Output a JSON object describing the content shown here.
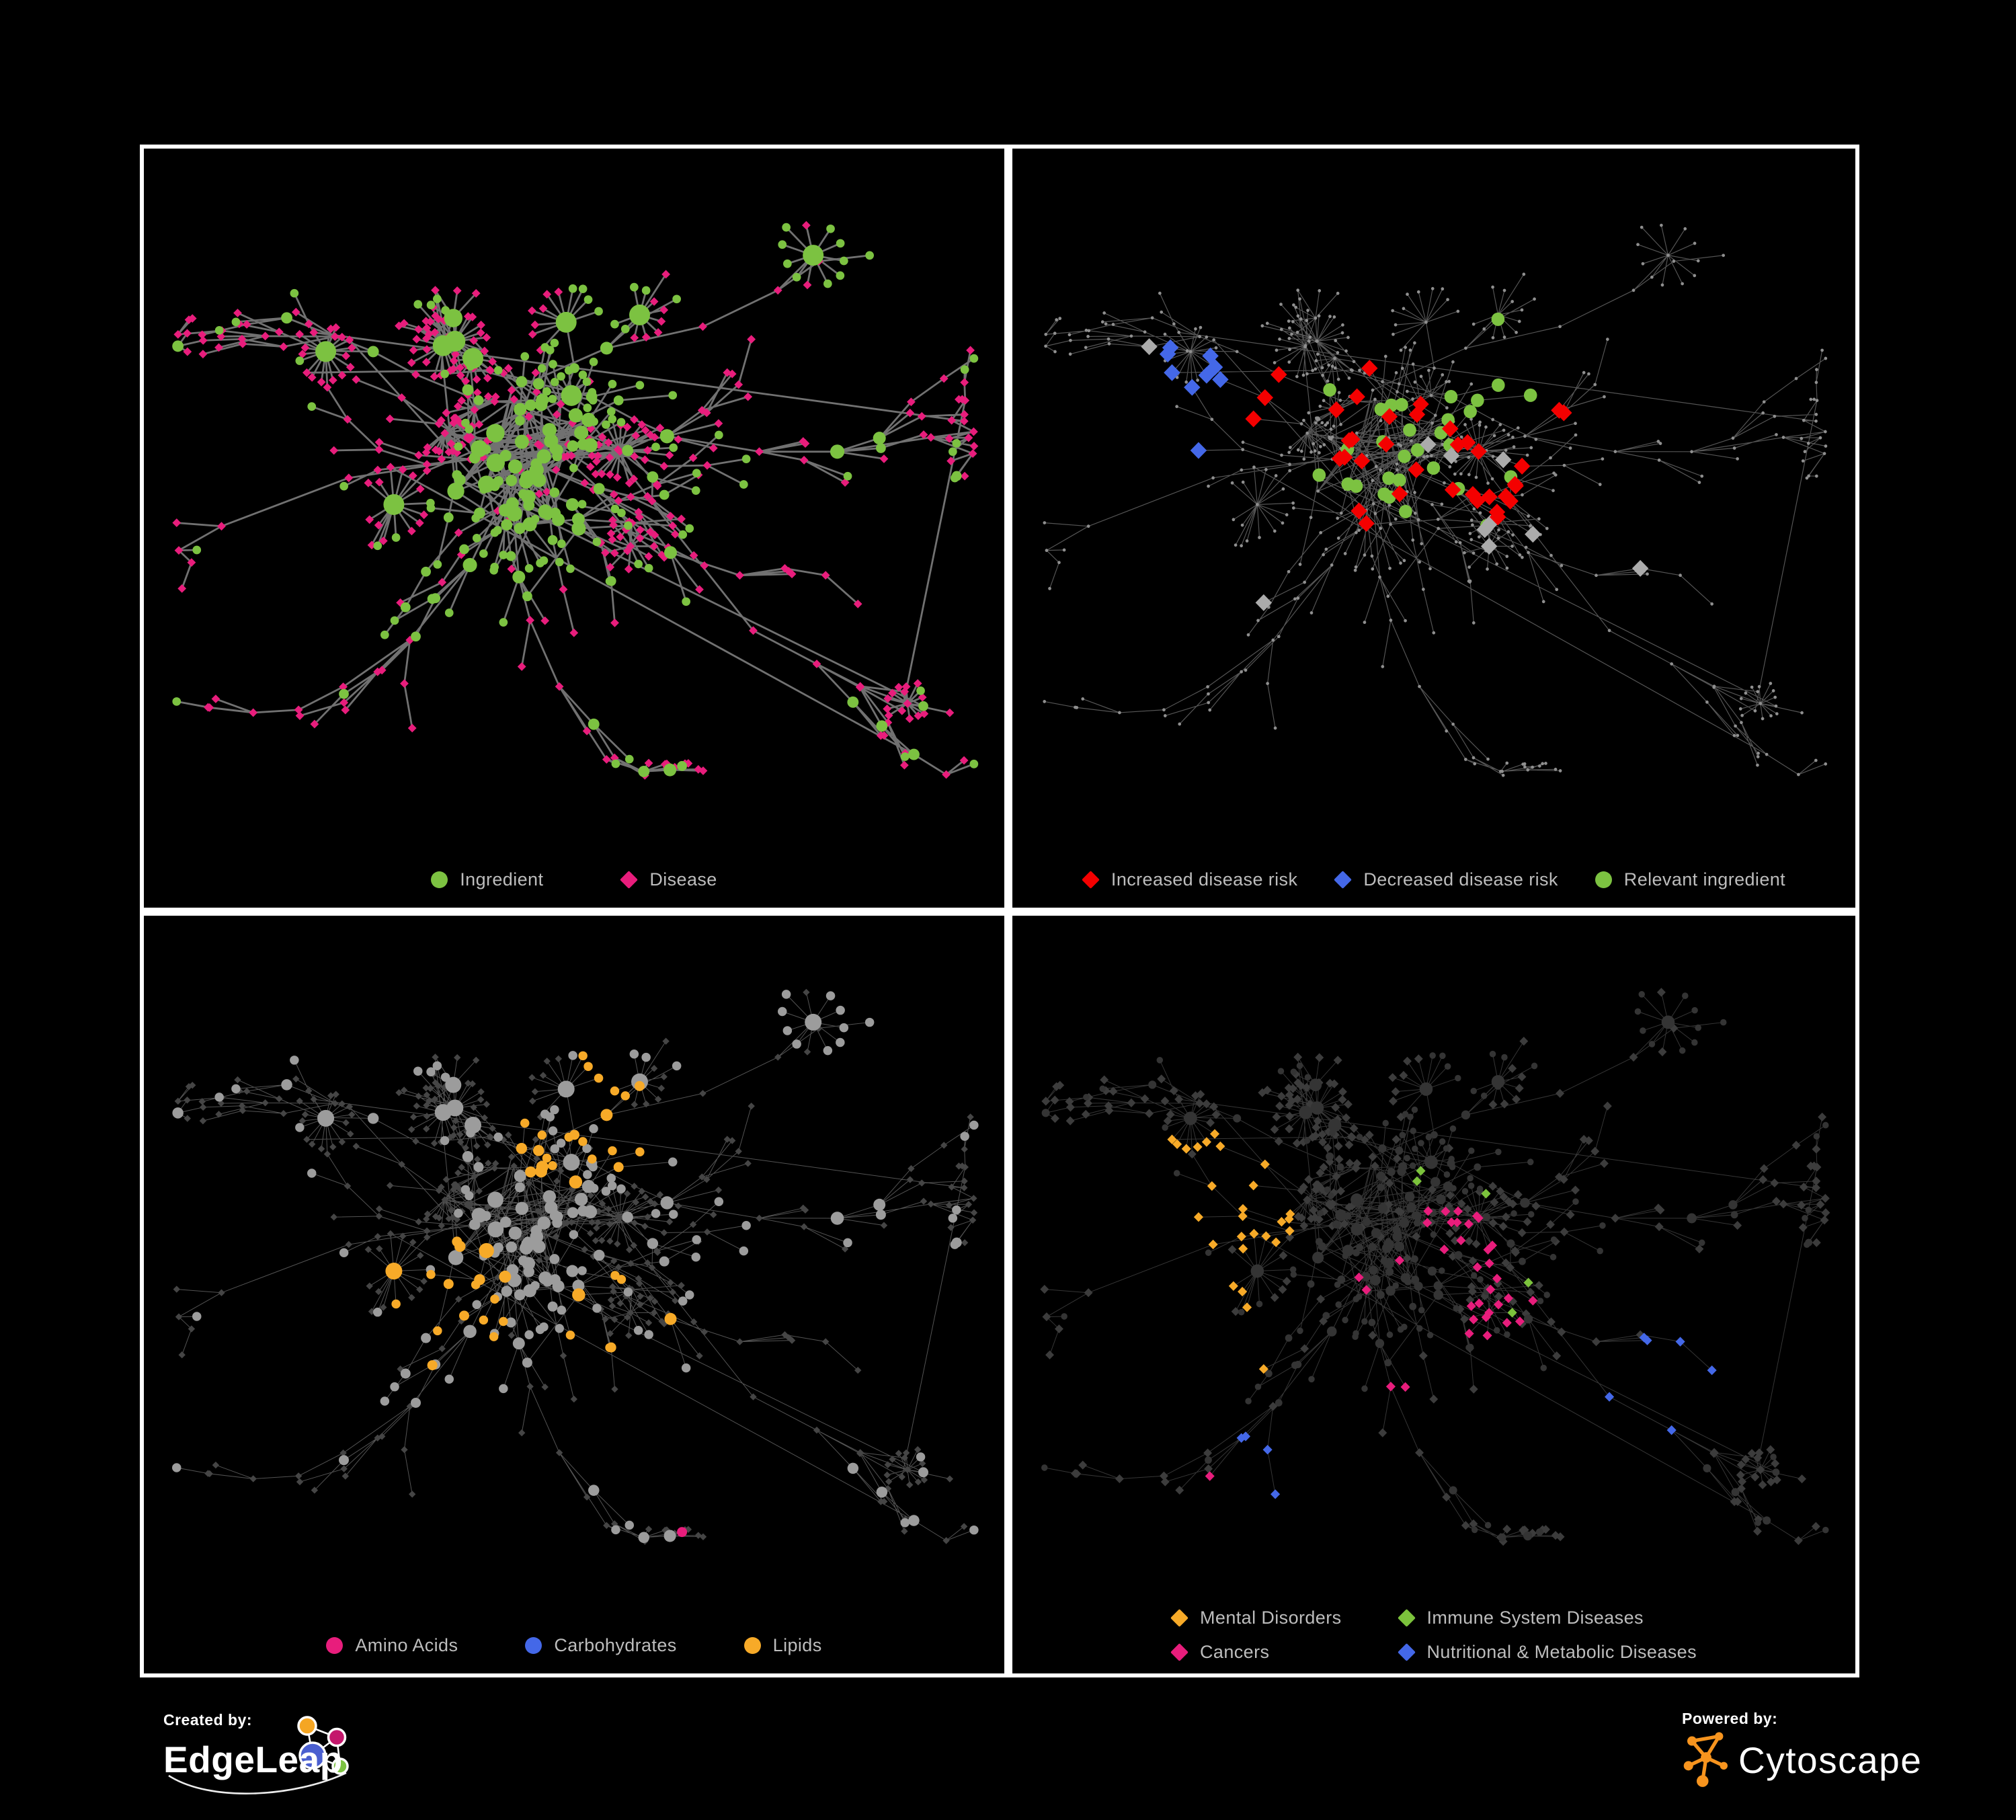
{
  "figure": {
    "background": "#000000",
    "panel_border": "#FFFFFF",
    "legend_text_color": "#BDBDBD"
  },
  "footer": {
    "created_by_label": "Created by:",
    "created_by_name": "EdgeLeap",
    "powered_by_label": "Powered by:",
    "powered_by_name": "Cytoscape",
    "cytoscape_brand_color": "#F7941E",
    "edgeleap_logo_colors": {
      "blue": "#4A5FD0",
      "orange": "#F5A623",
      "pink": "#C4176C",
      "green": "#7CC241"
    }
  },
  "network": {
    "seed": 20,
    "core": 52,
    "mainNodes": 430,
    "stars": 16,
    "longEdges": 10,
    "clusters": [
      [
        0.15,
        0.24
      ],
      [
        0.74,
        0.2
      ],
      [
        0.9,
        0.38
      ],
      [
        0.24,
        0.72
      ],
      [
        0.52,
        0.8
      ],
      [
        0.8,
        0.7
      ],
      [
        0.1,
        0.5
      ],
      [
        0.68,
        0.55
      ]
    ],
    "ingredient_anchors": [
      [
        0.55,
        0.27,
        0.1
      ],
      [
        0.42,
        0.5,
        0.11
      ],
      [
        0.32,
        0.62,
        0.07
      ]
    ]
  },
  "panels": [
    {
      "id": "ingredient-disease",
      "mode": "typed",
      "seed": 301,
      "edge": {
        "color": "#7B7B7B",
        "width": 2.8,
        "opacity": 0.92
      },
      "colors": {
        "ingredient": "#7CC241",
        "disease": "#E81D7C"
      },
      "legend": [
        {
          "shape": "circle",
          "color": "#7CC241",
          "label": "Ingredient"
        },
        {
          "shape": "diamond",
          "color": "#E81D7C",
          "label": "Disease"
        }
      ],
      "legend_gap": 115
    },
    {
      "id": "disease-risk",
      "mode": "overlay",
      "seed": 302,
      "edge": {
        "color": "#646464",
        "width": 1.2,
        "opacity": 0.85
      },
      "colors": {
        "base": "#8F8F8F"
      },
      "disease_rules": [
        {
          "color": "#F40000",
          "p": 0.5,
          "max": 36,
          "anchors": [
            [
              0.44,
              0.31,
              0.09
            ],
            [
              0.53,
              0.4,
              0.1
            ],
            [
              0.4,
              0.48,
              0.08
            ],
            [
              0.63,
              0.3,
              0.06
            ],
            [
              0.36,
              0.6,
              0.05
            ],
            [
              0.78,
              0.47,
              0.04
            ],
            [
              0.74,
              0.75,
              0.05
            ],
            [
              0.3,
              0.33,
              0.05
            ]
          ]
        },
        {
          "color": "#4468E8",
          "p": 0.6,
          "max": 12,
          "anchors": [
            [
              0.21,
              0.33,
              0.08
            ],
            [
              0.79,
              0.34,
              0.04
            ]
          ]
        },
        {
          "color": "#ABABAB",
          "p": 0.35,
          "max": 10,
          "anchors": [
            [
              0.16,
              0.29,
              0.05
            ],
            [
              0.55,
              0.39,
              0.06
            ],
            [
              0.3,
              0.62,
              0.05
            ],
            [
              0.7,
              0.56,
              0.05
            ],
            [
              0.78,
              0.61,
              0.04
            ],
            [
              0.6,
              0.52,
              0.05
            ]
          ]
        }
      ],
      "ingredient_rules": [
        {
          "color": "#7CC241",
          "p": 0.5,
          "max": 30,
          "anchors": [
            [
              0.33,
              0.35,
              0.1
            ],
            [
              0.47,
              0.38,
              0.1
            ],
            [
              0.56,
              0.47,
              0.08
            ],
            [
              0.25,
              0.5,
              0.08
            ],
            [
              0.77,
              0.35,
              0.035
            ],
            [
              0.72,
              0.6,
              0.05
            ],
            [
              0.4,
              0.7,
              0.06
            ],
            [
              0.6,
              0.28,
              0.07
            ],
            [
              0.12,
              0.35,
              0.05
            ]
          ]
        }
      ],
      "legend": [
        {
          "shape": "diamond",
          "color": "#F40000",
          "label": "Increased disease risk"
        },
        {
          "shape": "diamond",
          "color": "#4468E8",
          "label": "Decreased disease risk"
        },
        {
          "shape": "circle",
          "color": "#7CC241",
          "label": "Relevant ingredient"
        }
      ],
      "legend_gap": 55
    },
    {
      "id": "nutrient-class",
      "mode": "circles",
      "seed": 303,
      "edge": {
        "color": "#A5A5A5",
        "width": 1.0,
        "opacity": 0.5
      },
      "colors": {
        "base": "#9C9C9C",
        "diamond": "#454545"
      },
      "rules": [
        {
          "color": "#F7AA28",
          "p": 0.6,
          "max": 80,
          "anchors": [
            [
              0.5,
              0.27,
              0.09
            ],
            [
              0.33,
              0.5,
              0.1
            ],
            [
              0.56,
              0.54,
              0.07
            ],
            [
              0.3,
              0.33,
              0.06
            ],
            [
              0.75,
              0.72,
              0.05
            ],
            [
              0.2,
              0.88,
              0.045
            ],
            [
              0.92,
              0.2,
              0.035
            ],
            [
              0.63,
              0.13,
              0.05
            ]
          ]
        },
        {
          "color": "#4468E8",
          "p": 0.4,
          "max": 18,
          "anchors": [
            [
              0.53,
              0.24,
              0.06
            ],
            [
              0.35,
              0.52,
              0.04
            ],
            [
              0.13,
              0.3,
              0.025
            ],
            [
              0.93,
              0.72,
              0.025
            ]
          ]
        },
        {
          "color": "#E81D7C",
          "p": 0.4,
          "max": 22,
          "anchors": [
            [
              0.1,
              0.52,
              0.05
            ],
            [
              0.45,
              0.9,
              0.05
            ],
            [
              0.5,
              0.64,
              0.04
            ],
            [
              0.83,
              0.3,
              0.045
            ],
            [
              0.94,
              0.47,
              0.035
            ],
            [
              0.25,
              0.35,
              0.03
            ],
            [
              0.6,
              0.8,
              0.045
            ],
            [
              0.36,
              0.16,
              0.04
            ],
            [
              0.43,
              0.06,
              0.03
            ]
          ]
        }
      ],
      "legend": [
        {
          "shape": "circle",
          "color": "#E81D7C",
          "label": "Amino Acids"
        },
        {
          "shape": "circle",
          "color": "#4468E8",
          "label": "Carbohydrates"
        },
        {
          "shape": "circle",
          "color": "#F7AA28",
          "label": "Lipids"
        }
      ],
      "legend_gap": 100
    },
    {
      "id": "disease-category",
      "mode": "diamonds",
      "seed": 304,
      "edge": {
        "color": "#5A5A5A",
        "width": 1.0,
        "opacity": 0.6
      },
      "colors": {
        "base": "#3C3C3C",
        "circle": "#343434"
      },
      "rules": [
        {
          "color": "#F7AA28",
          "p": 0.8,
          "max": 95,
          "anchors": [
            [
              0.2,
              0.4,
              0.13
            ],
            [
              0.36,
              0.12,
              0.05
            ],
            [
              0.3,
              0.55,
              0.05
            ],
            [
              0.7,
              0.88,
              0.035
            ],
            [
              0.56,
              0.1,
              0.045
            ]
          ]
        },
        {
          "color": "#E81D7C",
          "p": 0.55,
          "max": 55,
          "anchors": [
            [
              0.5,
              0.47,
              0.09
            ],
            [
              0.44,
              0.57,
              0.07
            ],
            [
              0.58,
              0.55,
              0.06
            ],
            [
              0.92,
              0.22,
              0.05
            ],
            [
              0.26,
              0.78,
              0.05
            ],
            [
              0.66,
              0.92,
              0.04
            ],
            [
              0.12,
              0.85,
              0.04
            ]
          ]
        },
        {
          "color": "#4468E8",
          "p": 0.5,
          "max": 70,
          "anchors": [
            [
              0.76,
              0.62,
              0.08
            ],
            [
              0.83,
              0.3,
              0.07
            ],
            [
              0.7,
              0.2,
              0.05
            ],
            [
              0.9,
              0.45,
              0.05
            ],
            [
              0.32,
              0.72,
              0.06
            ],
            [
              0.6,
              0.3,
              0.045
            ],
            [
              0.95,
              0.6,
              0.04
            ],
            [
              0.13,
              0.12,
              0.045
            ],
            [
              0.45,
              0.95,
              0.04
            ],
            [
              0.25,
              0.1,
              0.04
            ]
          ]
        },
        {
          "color": "#7CC33C",
          "p": 0.35,
          "max": 9,
          "anchors": [
            [
              0.52,
              0.35,
              0.05
            ],
            [
              0.46,
              0.62,
              0.04
            ],
            [
              0.6,
              0.5,
              0.035
            ],
            [
              0.36,
              0.92,
              0.025
            ]
          ]
        }
      ],
      "legend": [
        {
          "shape": "diamond",
          "color": "#F7AA28",
          "label": "Mental Disorders"
        },
        {
          "shape": "diamond",
          "color": "#7CC33C",
          "label": "Immune System Diseases"
        },
        {
          "shape": "diamond",
          "color": "#E81D7C",
          "label": "Cancers"
        },
        {
          "shape": "diamond",
          "color": "#4468E8",
          "label": "Nutritional & Metabolic Diseases"
        }
      ],
      "legend_layout": "grid"
    }
  ]
}
